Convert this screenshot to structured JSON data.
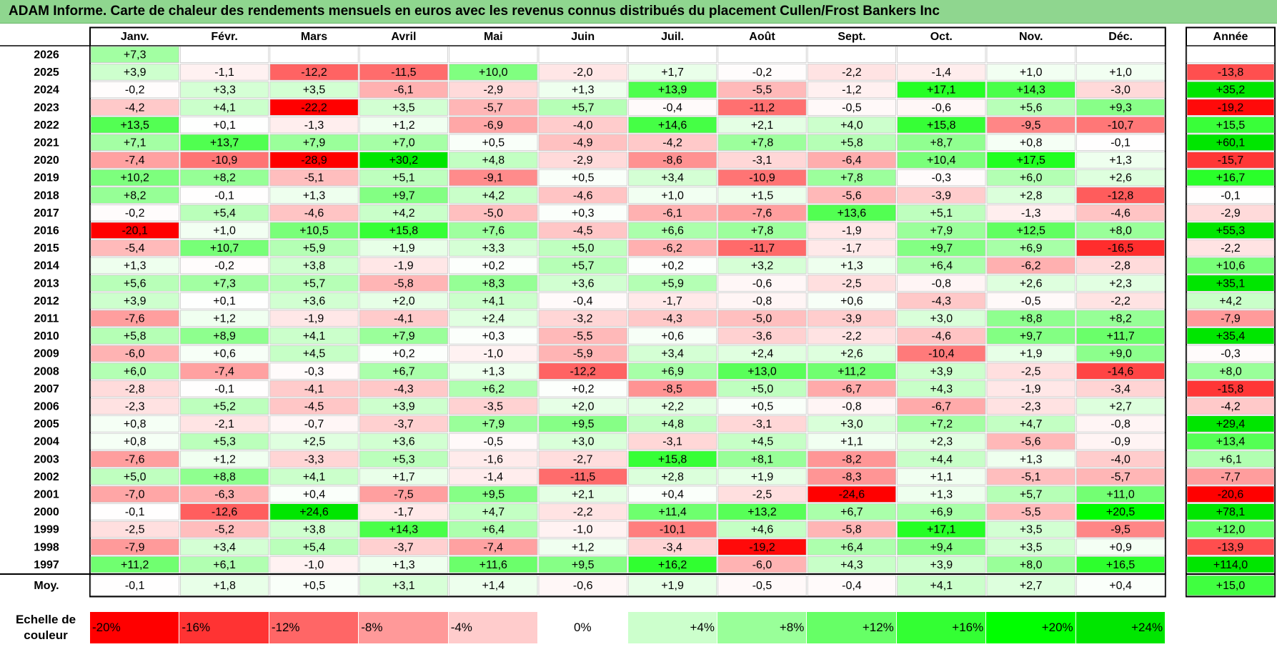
{
  "title": "ADAM Informe. Carte de chaleur des rendements mensuels en euros avec les revenus connus distribués du placement Cullen/Frost Bankers Inc",
  "chart_data": {
    "type": "heatmap",
    "columns": [
      "Janv.",
      "Févr.",
      "Mars",
      "Avril",
      "Mai",
      "Juin",
      "Juil.",
      "Août",
      "Sept.",
      "Oct.",
      "Nov.",
      "Déc."
    ],
    "year_column": "Année",
    "rows": [
      {
        "year": "2026",
        "months": [
          "+7,3",
          "",
          "",
          "",
          "",
          "",
          "",
          "",
          "",
          "",
          "",
          ""
        ],
        "annual": ""
      },
      {
        "year": "2025",
        "months": [
          "+3,9",
          "-1,1",
          "-12,2",
          "-11,5",
          "+10,0",
          "-2,0",
          "+1,7",
          "-0,2",
          "-2,2",
          "-1,4",
          "+1,0",
          "+1,0"
        ],
        "annual": "-13,8"
      },
      {
        "year": "2024",
        "months": [
          "-0,2",
          "+3,3",
          "+3,5",
          "-6,1",
          "-2,9",
          "+1,3",
          "+13,9",
          "-5,5",
          "-1,2",
          "+17,1",
          "+14,3",
          "-3,0"
        ],
        "annual": "+35,2"
      },
      {
        "year": "2023",
        "months": [
          "-4,2",
          "+4,1",
          "-22,2",
          "+3,5",
          "-5,7",
          "+5,7",
          "-0,4",
          "-11,2",
          "-0,5",
          "-0,6",
          "+5,6",
          "+9,3"
        ],
        "annual": "-19,2"
      },
      {
        "year": "2022",
        "months": [
          "+13,5",
          "+0,1",
          "-1,3",
          "+1,2",
          "-6,9",
          "-4,0",
          "+14,6",
          "+2,1",
          "+4,0",
          "+15,8",
          "-9,5",
          "-10,7"
        ],
        "annual": "+15,5"
      },
      {
        "year": "2021",
        "months": [
          "+7,1",
          "+13,7",
          "+7,9",
          "+7,0",
          "+0,5",
          "-4,9",
          "-4,2",
          "+7,8",
          "+5,8",
          "+8,7",
          "+0,8",
          "-0,1"
        ],
        "annual": "+60,1"
      },
      {
        "year": "2020",
        "months": [
          "-7,4",
          "-10,9",
          "-28,9",
          "+30,2",
          "+4,8",
          "-2,9",
          "-8,6",
          "-3,1",
          "-6,4",
          "+10,4",
          "+17,5",
          "+1,3"
        ],
        "annual": "-15,7"
      },
      {
        "year": "2019",
        "months": [
          "+10,2",
          "+8,2",
          "-5,1",
          "+5,1",
          "-9,1",
          "+0,5",
          "+3,4",
          "-10,9",
          "+7,8",
          "-0,3",
          "+6,0",
          "+2,6"
        ],
        "annual": "+16,7"
      },
      {
        "year": "2018",
        "months": [
          "+8,2",
          "-0,1",
          "+1,3",
          "+9,7",
          "+4,2",
          "-4,6",
          "+1,0",
          "+1,5",
          "-5,6",
          "-3,9",
          "+2,8",
          "-12,8"
        ],
        "annual": "-0,1"
      },
      {
        "year": "2017",
        "months": [
          "-0,2",
          "+5,4",
          "-4,6",
          "+4,2",
          "-5,0",
          "+0,3",
          "-6,1",
          "-7,6",
          "+13,6",
          "+5,1",
          "-1,3",
          "-4,6"
        ],
        "annual": "-2,9"
      },
      {
        "year": "2016",
        "months": [
          "-20,1",
          "+1,0",
          "+10,5",
          "+15,8",
          "+7,6",
          "-4,5",
          "+6,6",
          "+7,8",
          "-1,9",
          "+7,9",
          "+12,5",
          "+8,0"
        ],
        "annual": "+55,3"
      },
      {
        "year": "2015",
        "months": [
          "-5,4",
          "+10,7",
          "+5,9",
          "+1,9",
          "+3,3",
          "+5,0",
          "-6,2",
          "-11,7",
          "-1,7",
          "+9,7",
          "+6,9",
          "-16,5"
        ],
        "annual": "-2,2"
      },
      {
        "year": "2014",
        "months": [
          "+1,3",
          "-0,2",
          "+3,8",
          "-1,9",
          "+0,2",
          "+5,7",
          "+0,2",
          "+3,2",
          "+1,3",
          "+6,4",
          "-6,2",
          "-2,8"
        ],
        "annual": "+10,6"
      },
      {
        "year": "2013",
        "months": [
          "+5,6",
          "+7,3",
          "+5,7",
          "-5,8",
          "+8,3",
          "+3,6",
          "+5,9",
          "-0,6",
          "-2,5",
          "-0,8",
          "+2,6",
          "+2,3"
        ],
        "annual": "+35,1"
      },
      {
        "year": "2012",
        "months": [
          "+3,9",
          "+0,1",
          "+3,6",
          "+2,0",
          "+4,1",
          "-0,4",
          "-1,7",
          "-0,8",
          "+0,6",
          "-4,3",
          "-0,5",
          "-2,2"
        ],
        "annual": "+4,2"
      },
      {
        "year": "2011",
        "months": [
          "-7,6",
          "+1,2",
          "-1,9",
          "-4,1",
          "+2,4",
          "-3,2",
          "-4,3",
          "-5,0",
          "-3,9",
          "+3,0",
          "+8,8",
          "+8,2"
        ],
        "annual": "-7,9"
      },
      {
        "year": "2010",
        "months": [
          "+5,8",
          "+8,9",
          "+4,1",
          "+7,9",
          "+0,3",
          "-5,5",
          "+0,6",
          "-3,6",
          "-2,2",
          "-4,6",
          "+9,7",
          "+11,7"
        ],
        "annual": "+35,4"
      },
      {
        "year": "2009",
        "months": [
          "-6,0",
          "+0,6",
          "+4,5",
          "+0,2",
          "-1,0",
          "-5,9",
          "+3,4",
          "+2,4",
          "+2,6",
          "-10,4",
          "+1,9",
          "+9,0"
        ],
        "annual": "-0,3"
      },
      {
        "year": "2008",
        "months": [
          "+6,0",
          "-7,4",
          "-0,3",
          "+6,7",
          "+1,3",
          "-12,2",
          "+6,9",
          "+13,0",
          "+11,2",
          "+3,9",
          "-2,5",
          "-14,6"
        ],
        "annual": "+8,0"
      },
      {
        "year": "2007",
        "months": [
          "-2,8",
          "-0,1",
          "-4,1",
          "-4,3",
          "+6,2",
          "+0,2",
          "-8,5",
          "+5,0",
          "-6,7",
          "+4,3",
          "-1,9",
          "-3,4"
        ],
        "annual": "-15,8"
      },
      {
        "year": "2006",
        "months": [
          "-2,3",
          "+5,2",
          "-4,5",
          "+3,9",
          "-3,5",
          "+2,0",
          "+2,2",
          "+0,5",
          "-0,8",
          "-6,7",
          "-2,3",
          "+2,7"
        ],
        "annual": "-4,2"
      },
      {
        "year": "2005",
        "months": [
          "+0,8",
          "-2,1",
          "-0,7",
          "-3,7",
          "+7,9",
          "+9,5",
          "+4,8",
          "-3,1",
          "+3,0",
          "+7,2",
          "+4,7",
          "-0,8"
        ],
        "annual": "+29,4"
      },
      {
        "year": "2004",
        "months": [
          "+0,8",
          "+5,3",
          "+2,5",
          "+3,6",
          "-0,5",
          "+3,0",
          "-3,1",
          "+4,5",
          "+1,1",
          "+2,3",
          "-5,6",
          "-0,9"
        ],
        "annual": "+13,4"
      },
      {
        "year": "2003",
        "months": [
          "-7,6",
          "+1,2",
          "-3,3",
          "+5,3",
          "-1,6",
          "-2,7",
          "+15,8",
          "+8,1",
          "-8,2",
          "+4,4",
          "+1,3",
          "-4,0"
        ],
        "annual": "+6,1"
      },
      {
        "year": "2002",
        "months": [
          "+5,0",
          "+8,8",
          "+4,1",
          "+1,7",
          "-1,4",
          "-11,5",
          "+2,8",
          "+1,9",
          "-8,3",
          "+1,1",
          "-5,1",
          "-5,7"
        ],
        "annual": "-7,7"
      },
      {
        "year": "2001",
        "months": [
          "-7,0",
          "-6,3",
          "+0,4",
          "-7,5",
          "+9,5",
          "+2,1",
          "+0,4",
          "-2,5",
          "-24,6",
          "+1,3",
          "+5,7",
          "+11,0"
        ],
        "annual": "-20,6"
      },
      {
        "year": "2000",
        "months": [
          "-0,1",
          "-12,6",
          "+24,6",
          "-1,7",
          "+4,7",
          "-2,2",
          "+11,4",
          "+13,2",
          "+6,7",
          "+6,9",
          "-5,5",
          "+20,5"
        ],
        "annual": "+78,1"
      },
      {
        "year": "1999",
        "months": [
          "-2,5",
          "-5,2",
          "+3,8",
          "+14,3",
          "+6,4",
          "-1,0",
          "-10,1",
          "+4,6",
          "-5,8",
          "+17,1",
          "+3,5",
          "-9,5"
        ],
        "annual": "+12,0"
      },
      {
        "year": "1998",
        "months": [
          "-7,9",
          "+3,4",
          "+5,4",
          "-3,7",
          "-7,4",
          "+1,2",
          "-3,4",
          "-19,2",
          "+6,4",
          "+9,4",
          "+3,5",
          "+0,9"
        ],
        "annual": "-13,9"
      },
      {
        "year": "1997",
        "months": [
          "+11,2",
          "+6,1",
          "-1,0",
          "+1,3",
          "+11,6",
          "+9,5",
          "+16,2",
          "-6,0",
          "+4,3",
          "+3,9",
          "+8,0",
          "+16,5"
        ],
        "annual": "+114,0"
      }
    ],
    "average": {
      "label": "Moy.",
      "months": [
        "-0,1",
        "+1,8",
        "+0,5",
        "+3,1",
        "+1,4",
        "-0,6",
        "+1,9",
        "-0,5",
        "-0,4",
        "+4,1",
        "+2,7",
        "+0,4"
      ],
      "annual": "+15,0"
    },
    "color_scale": {
      "label_line1": "Echelle de",
      "label_line2": "couleur",
      "stops": [
        {
          "label": "-20%",
          "value": -20,
          "color": "#ff0000"
        },
        {
          "label": "-16%",
          "value": -16,
          "color": "#ff3333"
        },
        {
          "label": "-12%",
          "value": -12,
          "color": "#ff6666"
        },
        {
          "label": "-8%",
          "value": -8,
          "color": "#ff9999"
        },
        {
          "label": "-4%",
          "value": -4,
          "color": "#ffcccc"
        },
        {
          "label": "0%",
          "value": 0,
          "color": "#ffffff"
        },
        {
          "label": "+4%",
          "value": 4,
          "color": "#ccffcc"
        },
        {
          "label": "+8%",
          "value": 8,
          "color": "#99ff99"
        },
        {
          "label": "+12%",
          "value": 12,
          "color": "#66ff66"
        },
        {
          "label": "+16%",
          "value": 16,
          "color": "#33ff33"
        },
        {
          "label": "+20%",
          "value": 20,
          "color": "#00ff00"
        },
        {
          "label": "+24%",
          "value": 24,
          "color": "#00e600"
        }
      ]
    }
  }
}
